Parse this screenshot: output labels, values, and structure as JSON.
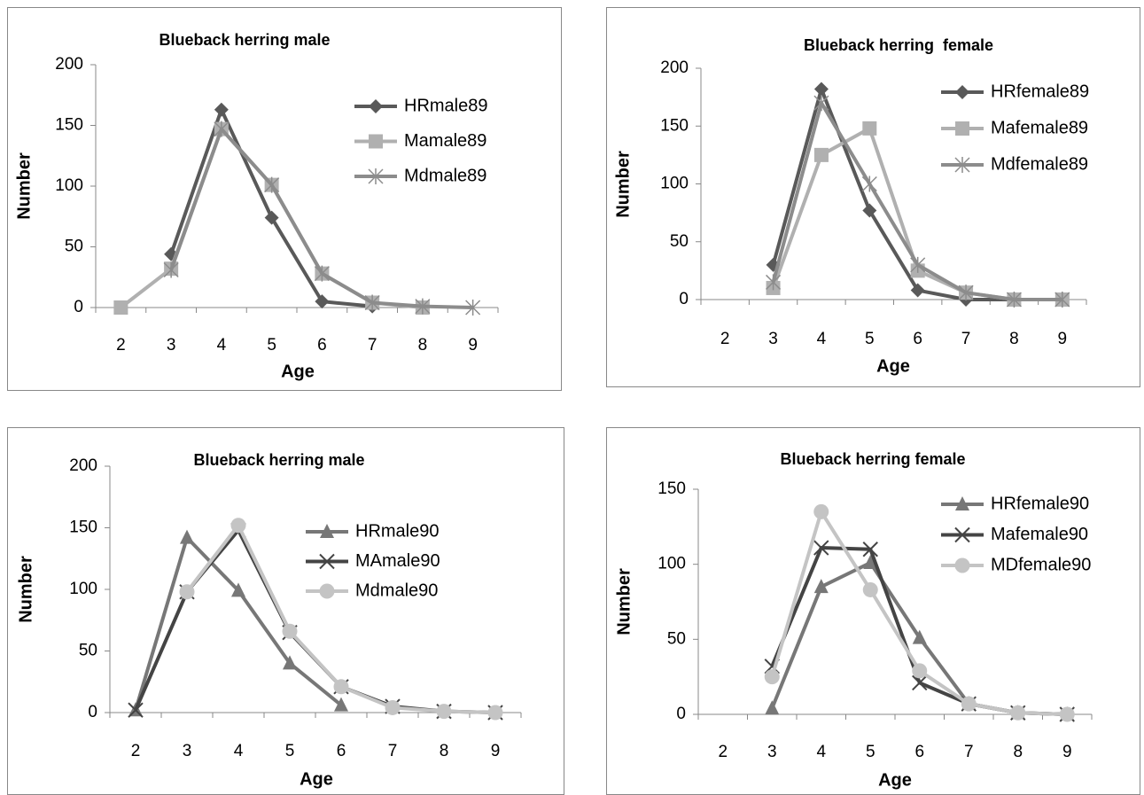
{
  "chart_data": [
    {
      "type": "line",
      "title": "Blueback herring male",
      "xlabel": "Age",
      "ylabel": "Number",
      "categories": [
        2,
        3,
        4,
        5,
        6,
        7,
        8,
        9
      ],
      "ylim": [
        0,
        200
      ],
      "yticks": [
        0,
        50,
        100,
        150,
        200
      ],
      "series": [
        {
          "name": "HRmale89",
          "color": "#595959",
          "marker": "diamond",
          "values": [
            null,
            44,
            163,
            74,
            5,
            1,
            null,
            null
          ]
        },
        {
          "name": "Mamale89",
          "color": "#b0b0b0",
          "marker": "square",
          "values": [
            0,
            32,
            147,
            101,
            28,
            4,
            0,
            null
          ]
        },
        {
          "name": "Mdmale89",
          "color": "#8c8c8c",
          "marker": "star",
          "values": [
            null,
            31,
            147,
            101,
            28,
            4,
            1,
            0
          ]
        }
      ]
    },
    {
      "type": "line",
      "title": "Blueback herring  female",
      "xlabel": "Age",
      "ylabel": "Number",
      "categories": [
        2,
        3,
        4,
        5,
        6,
        7,
        8,
        9
      ],
      "ylim": [
        0,
        200
      ],
      "yticks": [
        0,
        50,
        100,
        150,
        200
      ],
      "series": [
        {
          "name": "HRfemale89",
          "color": "#595959",
          "marker": "diamond",
          "values": [
            null,
            30,
            182,
            77,
            8,
            0,
            0,
            0
          ]
        },
        {
          "name": "Mafemale89",
          "color": "#b0b0b0",
          "marker": "square",
          "values": [
            null,
            10,
            125,
            148,
            25,
            6,
            0,
            0
          ]
        },
        {
          "name": "Mdfemale89",
          "color": "#8c8c8c",
          "marker": "star",
          "values": [
            null,
            15,
            170,
            100,
            30,
            6,
            0,
            0
          ]
        }
      ]
    },
    {
      "type": "line",
      "title": "Blueback herring male",
      "xlabel": "Age",
      "ylabel": "Number",
      "categories": [
        2,
        3,
        4,
        5,
        6,
        7,
        8,
        9
      ],
      "ylim": [
        0,
        200
      ],
      "yticks": [
        0,
        50,
        100,
        150,
        200
      ],
      "series": [
        {
          "name": "HRmale90",
          "color": "#777777",
          "marker": "triangle",
          "values": [
            2,
            142,
            99,
            40,
            6,
            null,
            null,
            null
          ]
        },
        {
          "name": "MAmale90",
          "color": "#444444",
          "marker": "x",
          "values": [
            2,
            98,
            148,
            65,
            21,
            5,
            1,
            0
          ]
        },
        {
          "name": "Mdmale90",
          "color": "#c4c4c4",
          "marker": "circle",
          "values": [
            null,
            98,
            152,
            66,
            21,
            4,
            1,
            0
          ]
        }
      ]
    },
    {
      "type": "line",
      "title": "Blueback herring female",
      "xlabel": "Age",
      "ylabel": "Number",
      "categories": [
        2,
        3,
        4,
        5,
        6,
        7,
        8,
        9
      ],
      "ylim": [
        0,
        150
      ],
      "yticks": [
        0,
        50,
        100,
        150
      ],
      "series": [
        {
          "name": "HRfemale90",
          "color": "#777777",
          "marker": "triangle",
          "values": [
            null,
            4,
            85,
            101,
            51,
            7,
            1,
            0
          ]
        },
        {
          "name": "Mafemale90",
          "color": "#444444",
          "marker": "x",
          "values": [
            null,
            32,
            111,
            110,
            21,
            7,
            1,
            0
          ]
        },
        {
          "name": "MDfemale90",
          "color": "#c4c4c4",
          "marker": "circle",
          "values": [
            null,
            25,
            135,
            83,
            29,
            7,
            1,
            0
          ]
        }
      ]
    }
  ]
}
